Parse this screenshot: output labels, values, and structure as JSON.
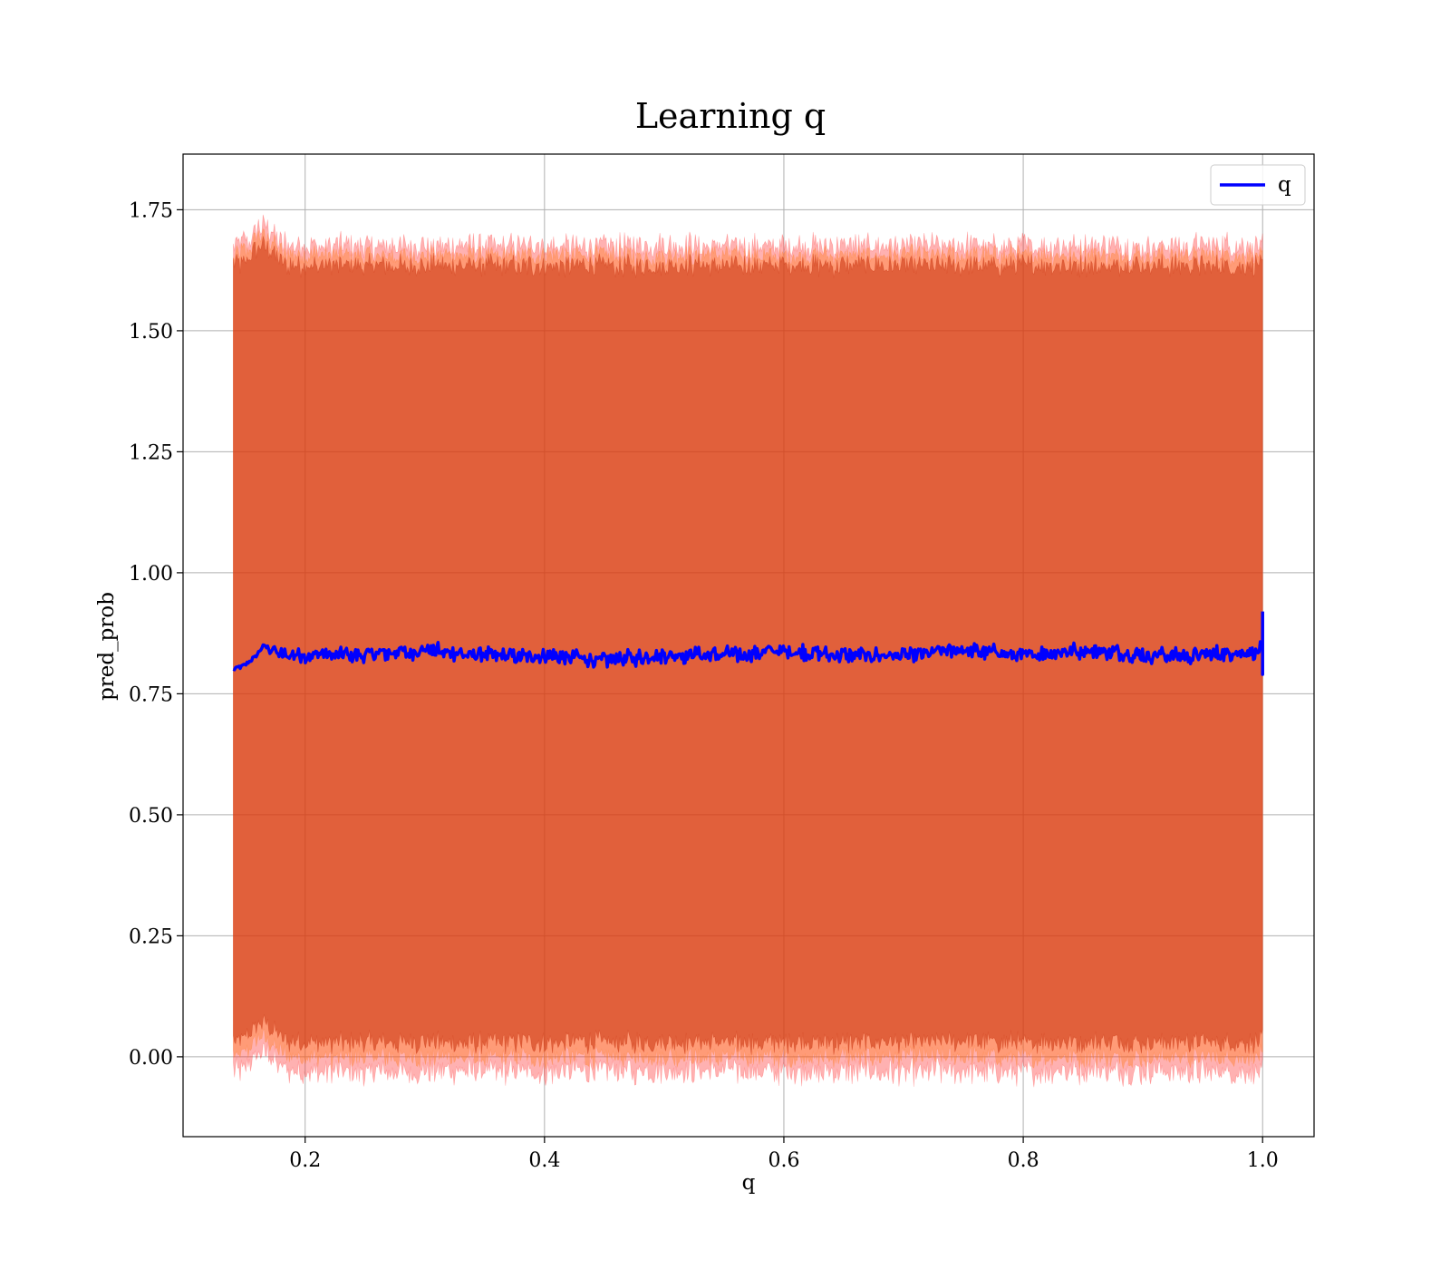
{
  "chart_data": {
    "type": "line",
    "title": "Learning q",
    "xlabel": "q",
    "ylabel": "pred_prob",
    "xlim": [
      0.098,
      1.043
    ],
    "ylim": [
      -0.165,
      1.865
    ],
    "x_ticks": [
      0.2,
      0.4,
      0.6,
      0.8,
      1.0
    ],
    "x_tick_labels": [
      "0.2",
      "0.4",
      "0.6",
      "0.8",
      "1.0"
    ],
    "y_ticks": [
      0.0,
      0.25,
      0.5,
      0.75,
      1.0,
      1.25,
      1.5,
      1.75
    ],
    "y_tick_labels": [
      "0.00",
      "0.25",
      "0.50",
      "0.75",
      "1.00",
      "1.25",
      "1.50",
      "1.75"
    ],
    "grid": true,
    "legend": {
      "placement": "top-right",
      "entries": [
        "q"
      ]
    },
    "x_range": [
      0.14,
      1.0
    ],
    "series": [
      {
        "name": "q",
        "color": "#0000ff",
        "x": [
          0.14,
          0.15,
          0.16,
          0.165,
          0.18,
          0.2,
          0.25,
          0.3,
          0.35,
          0.4,
          0.45,
          0.5,
          0.55,
          0.6,
          0.65,
          0.7,
          0.75,
          0.8,
          0.85,
          0.9,
          0.95,
          0.999,
          1.0
        ],
        "y": [
          0.8,
          0.81,
          0.83,
          0.85,
          0.83,
          0.83,
          0.83,
          0.84,
          0.83,
          0.83,
          0.82,
          0.83,
          0.83,
          0.84,
          0.83,
          0.83,
          0.84,
          0.83,
          0.84,
          0.83,
          0.83,
          0.84,
          0.92
        ]
      }
    ],
    "bands": [
      {
        "color": "#800000",
        "opacity": 0.55,
        "lower_mean": 0.03,
        "upper_mean": 1.635,
        "noise": 0.018
      },
      {
        "color": "#ffa000",
        "opacity": 0.35,
        "lower_mean": 0.0,
        "upper_mean": 1.655,
        "noise": 0.018
      },
      {
        "color": "#ff2020",
        "opacity": 0.35,
        "lower_mean": -0.03,
        "upper_mean": 1.675,
        "noise": 0.022
      }
    ]
  }
}
